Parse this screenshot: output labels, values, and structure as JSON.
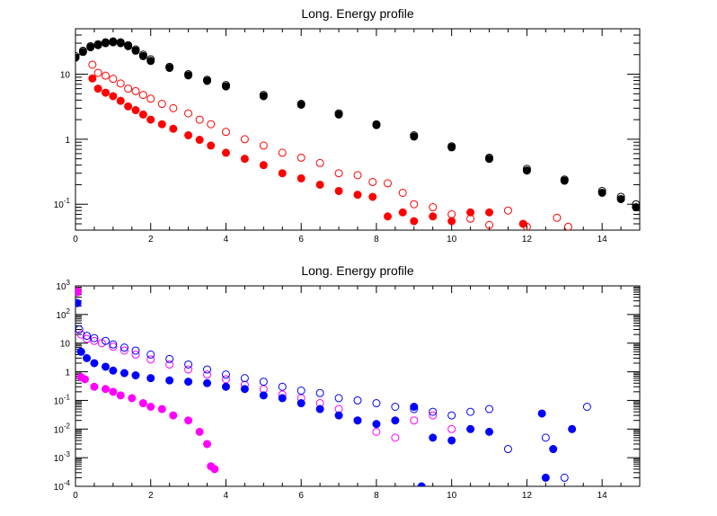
{
  "chart_data": [
    {
      "type": "scatter",
      "title": "Long. Energy profile",
      "xlabel": "",
      "ylabel": "",
      "xlim": [
        0,
        15
      ],
      "ylim": [
        0.04,
        50
      ],
      "y_scale": "log",
      "x_ticks": [
        "0",
        "2",
        "4",
        "6",
        "8",
        "10",
        "12",
        "14"
      ],
      "y_tick_values": [
        0.1,
        1,
        10
      ],
      "y_tick_labels": [
        {
          "base": "10",
          "exp": "-1"
        },
        {
          "base": "1",
          "exp": ""
        },
        {
          "base": "10",
          "exp": ""
        }
      ],
      "grid": false,
      "series": [
        {
          "color": "#000000",
          "marker": "open-circle",
          "x": [
            0.0,
            0.2,
            0.4,
            0.6,
            0.8,
            1.0,
            1.2,
            1.4,
            1.6,
            1.8,
            2.0,
            2.5,
            3.0,
            3.5,
            4.0,
            5.0,
            6.0,
            7.0,
            8.0,
            9.0,
            10.0,
            11.0,
            12.0,
            13.0,
            14.0,
            14.5,
            14.9
          ],
          "y": [
            19,
            23,
            27,
            29,
            31,
            32,
            31,
            28,
            24,
            20,
            17,
            13,
            10,
            8.2,
            6.8,
            4.8,
            3.5,
            2.5,
            1.7,
            1.15,
            0.78,
            0.52,
            0.35,
            0.24,
            0.16,
            0.13,
            0.1
          ]
        },
        {
          "color": "#000000",
          "marker": "filled-circle",
          "x": [
            0.0,
            0.2,
            0.4,
            0.6,
            0.8,
            1.0,
            1.2,
            1.4,
            1.6,
            1.8,
            2.0,
            2.5,
            3.0,
            3.5,
            4.0,
            5.0,
            6.0,
            7.0,
            8.0,
            9.0,
            10.0,
            11.0,
            12.0,
            13.0,
            14.0,
            14.5,
            14.9
          ],
          "y": [
            18,
            22,
            26,
            28,
            30,
            31,
            30,
            27,
            23,
            19,
            16,
            12.5,
            9.6,
            7.9,
            6.5,
            4.6,
            3.4,
            2.4,
            1.65,
            1.1,
            0.75,
            0.5,
            0.33,
            0.23,
            0.15,
            0.12,
            0.09
          ]
        },
        {
          "color": "#ff0000",
          "marker": "open-circle",
          "x": [
            0.45,
            0.6,
            0.8,
            1.0,
            1.2,
            1.4,
            1.6,
            1.8,
            2.0,
            2.3,
            2.6,
            3.0,
            3.3,
            3.6,
            4.0,
            4.5,
            5.0,
            5.5,
            6.0,
            6.5,
            7.0,
            7.5,
            7.9,
            8.3,
            8.7,
            9.0,
            9.5,
            10.0,
            10.5,
            11.0,
            11.5,
            12.0,
            12.8,
            13.1
          ],
          "y": [
            14,
            10.5,
            9.5,
            8.5,
            7.2,
            6.0,
            5.5,
            4.8,
            4.2,
            3.5,
            3.0,
            2.5,
            2.0,
            1.7,
            1.3,
            1.0,
            0.8,
            0.62,
            0.52,
            0.43,
            0.3,
            0.28,
            0.22,
            0.21,
            0.15,
            0.1,
            0.09,
            0.07,
            0.06,
            0.048,
            0.08,
            0.045,
            0.062,
            0.045
          ]
        },
        {
          "color": "#ff0000",
          "marker": "filled-circle",
          "x": [
            0.45,
            0.6,
            0.8,
            1.0,
            1.2,
            1.4,
            1.6,
            1.8,
            2.0,
            2.3,
            2.6,
            3.0,
            3.3,
            3.6,
            4.0,
            4.5,
            5.0,
            5.5,
            6.0,
            6.5,
            7.0,
            7.5,
            7.9,
            8.3,
            8.7,
            9.0,
            9.5,
            10.0,
            10.5,
            11.0,
            11.9
          ],
          "y": [
            8.6,
            6.0,
            5.2,
            4.6,
            3.9,
            3.2,
            2.8,
            2.4,
            2.0,
            1.7,
            1.45,
            1.15,
            0.98,
            0.8,
            0.62,
            0.5,
            0.4,
            0.3,
            0.25,
            0.2,
            0.16,
            0.14,
            0.13,
            0.065,
            0.075,
            0.055,
            0.065,
            0.055,
            0.075,
            0.075,
            0.05
          ]
        }
      ]
    },
    {
      "type": "scatter",
      "title": "Long. Energy profile",
      "xlabel": "",
      "ylabel": "",
      "xlim": [
        0,
        15
      ],
      "ylim": [
        0.0001,
        1000
      ],
      "y_scale": "log",
      "x_ticks": [
        "0",
        "2",
        "4",
        "6",
        "8",
        "10",
        "12",
        "14"
      ],
      "y_tick_values": [
        0.0001,
        0.001,
        0.01,
        0.1,
        1,
        10,
        100,
        1000
      ],
      "y_tick_labels": [
        {
          "base": "10",
          "exp": "-4"
        },
        {
          "base": "10",
          "exp": "-3"
        },
        {
          "base": "10",
          "exp": "-2"
        },
        {
          "base": "10",
          "exp": "-1"
        },
        {
          "base": "1",
          "exp": ""
        },
        {
          "base": "10",
          "exp": ""
        },
        {
          "base": "10",
          "exp": "2"
        },
        {
          "base": "10",
          "exp": "3"
        }
      ],
      "grid": false,
      "series": [
        {
          "color": "#ff00ff",
          "marker": "open-circle",
          "x": [
            0.05,
            0.15,
            0.3,
            0.5,
            0.7,
            1.0,
            1.3,
            1.6,
            2.0,
            2.5,
            3.0,
            3.5,
            4.0,
            4.5,
            5.0,
            5.5,
            6.0,
            6.5,
            7.0,
            7.5,
            8.0,
            8.5,
            9.0,
            9.5,
            10.0
          ],
          "y": [
            600,
            20,
            14,
            12,
            10,
            7.5,
            5.5,
            4.0,
            2.7,
            1.8,
            1.2,
            0.8,
            0.55,
            0.35,
            0.25,
            0.16,
            0.12,
            0.08,
            0.05,
            0.02,
            0.008,
            0.005,
            0.02,
            0.03,
            0.01
          ]
        },
        {
          "color": "#ff00ff",
          "marker": "filled-circle",
          "x": [
            0.05,
            0.15,
            0.25,
            0.5,
            0.8,
            1.0,
            1.2,
            1.5,
            1.8,
            2.0,
            2.3,
            2.6,
            3.0,
            3.3,
            3.5,
            3.6,
            3.7
          ],
          "y": [
            650,
            0.65,
            0.55,
            0.3,
            0.25,
            0.2,
            0.15,
            0.12,
            0.08,
            0.06,
            0.05,
            0.03,
            0.02,
            0.008,
            0.003,
            0.0005,
            0.0004
          ]
        },
        {
          "color": "#0000ff",
          "marker": "open-circle",
          "x": [
            0.1,
            0.3,
            0.5,
            0.8,
            1.0,
            1.3,
            1.6,
            2.0,
            2.5,
            3.0,
            3.5,
            4.0,
            4.5,
            5.0,
            5.5,
            6.0,
            6.5,
            7.0,
            7.5,
            8.0,
            8.5,
            9.0,
            9.5,
            10.0,
            10.5,
            11.0,
            11.5,
            12.5,
            13.0,
            13.6
          ],
          "y": [
            30,
            18,
            15,
            12,
            9,
            7,
            5.5,
            4.0,
            2.8,
            1.8,
            1.2,
            0.8,
            0.6,
            0.45,
            0.3,
            0.22,
            0.18,
            0.12,
            0.1,
            0.08,
            0.06,
            0.05,
            0.04,
            0.03,
            0.04,
            0.05,
            0.002,
            0.005,
            0.0002,
            0.06
          ]
        },
        {
          "color": "#0000ff",
          "marker": "filled-circle",
          "x": [
            0.05,
            0.15,
            0.3,
            0.5,
            0.8,
            1.0,
            1.3,
            1.6,
            2.0,
            2.5,
            3.0,
            3.5,
            4.0,
            4.5,
            5.0,
            5.5,
            6.0,
            6.5,
            7.0,
            7.5,
            8.0,
            8.5,
            9.0,
            9.2,
            9.5,
            10.0,
            10.5,
            11.0,
            12.4,
            12.5,
            12.7,
            13.2
          ],
          "y": [
            250,
            5.0,
            3.0,
            2.0,
            1.5,
            1.1,
            0.9,
            0.75,
            0.6,
            0.5,
            0.45,
            0.4,
            0.3,
            0.25,
            0.15,
            0.12,
            0.08,
            0.05,
            0.03,
            0.02,
            0.015,
            0.02,
            0.06,
            0.0001,
            0.005,
            0.004,
            0.01,
            0.008,
            0.035,
            0.0002,
            0.002,
            0.01
          ]
        }
      ]
    }
  ]
}
